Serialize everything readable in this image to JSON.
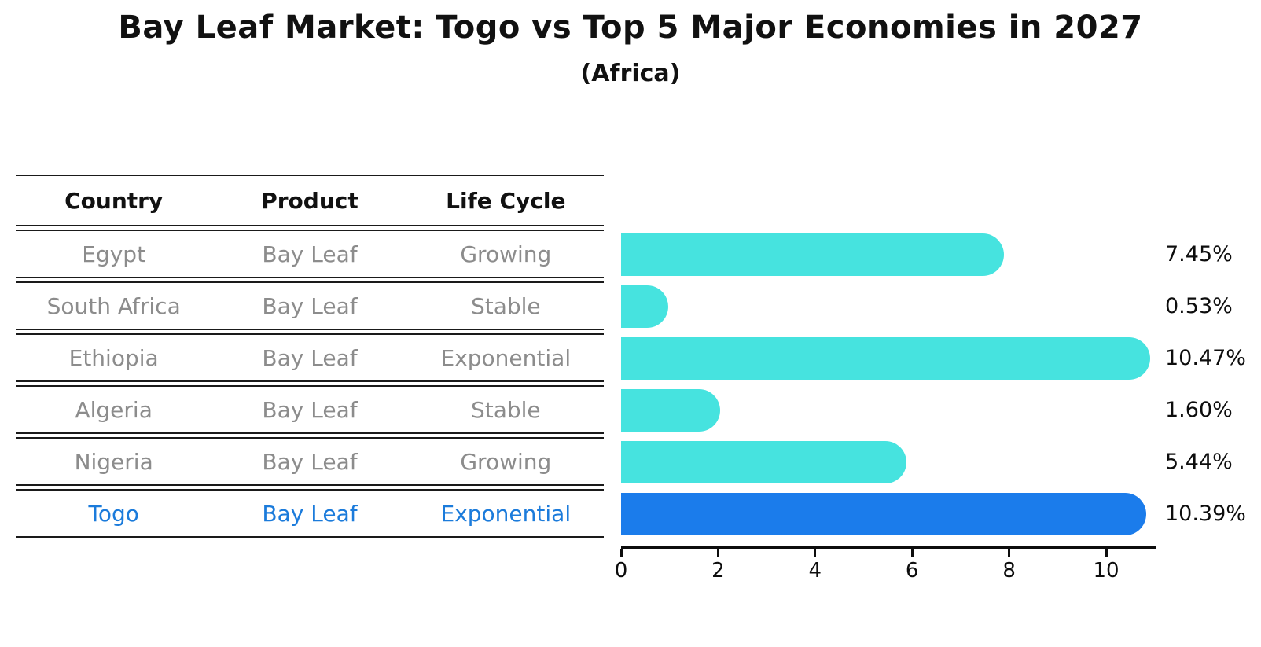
{
  "title": "Bay Leaf Market: Togo vs Top 5 Major Economies in 2027",
  "subtitle": "(Africa)",
  "table": {
    "headers": [
      "Country",
      "Product",
      "Life Cycle"
    ],
    "rows": [
      {
        "country": "Egypt",
        "product": "Bay Leaf",
        "life_cycle": "Growing"
      },
      {
        "country": "South Africa",
        "product": "Bay Leaf",
        "life_cycle": "Stable"
      },
      {
        "country": "Ethiopia",
        "product": "Bay Leaf",
        "life_cycle": "Exponential"
      },
      {
        "country": "Algeria",
        "product": "Bay Leaf",
        "life_cycle": "Stable"
      },
      {
        "country": "Nigeria",
        "product": "Bay Leaf",
        "life_cycle": "Growing"
      },
      {
        "country": "Togo",
        "product": "Bay Leaf",
        "life_cycle": "Exponential"
      }
    ]
  },
  "chart_data": {
    "type": "bar",
    "orientation": "horizontal",
    "title": "Bay Leaf Market: Togo vs Top 5 Major Economies in 2027",
    "subtitle": "(Africa)",
    "categories": [
      "Egypt",
      "South Africa",
      "Ethiopia",
      "Algeria",
      "Nigeria",
      "Togo"
    ],
    "values": [
      7.45,
      0.53,
      10.47,
      1.6,
      5.44,
      10.39
    ],
    "value_labels": [
      "7.45%",
      "0.53%",
      "10.47%",
      "1.60%",
      "5.44%",
      "10.39%"
    ],
    "x_ticks": [
      0,
      2,
      4,
      6,
      8,
      10
    ],
    "xlim": [
      0,
      11
    ],
    "xlabel": "",
    "ylabel": "",
    "grid": false,
    "legend": false,
    "bar_color": "#46E3DF",
    "highlight_bar_color": "#1B7CEB",
    "highlight_index": 5,
    "highlight_bar_style": "dotted-edge"
  },
  "colors": {
    "background": "#FFFFFF",
    "table_header_text": "#111111",
    "table_cell_text": "#8C8C8C",
    "highlight_row_text": "#1B7BDB",
    "value_label_text": "#0D0D0D",
    "axis": "#0D0D0D"
  }
}
